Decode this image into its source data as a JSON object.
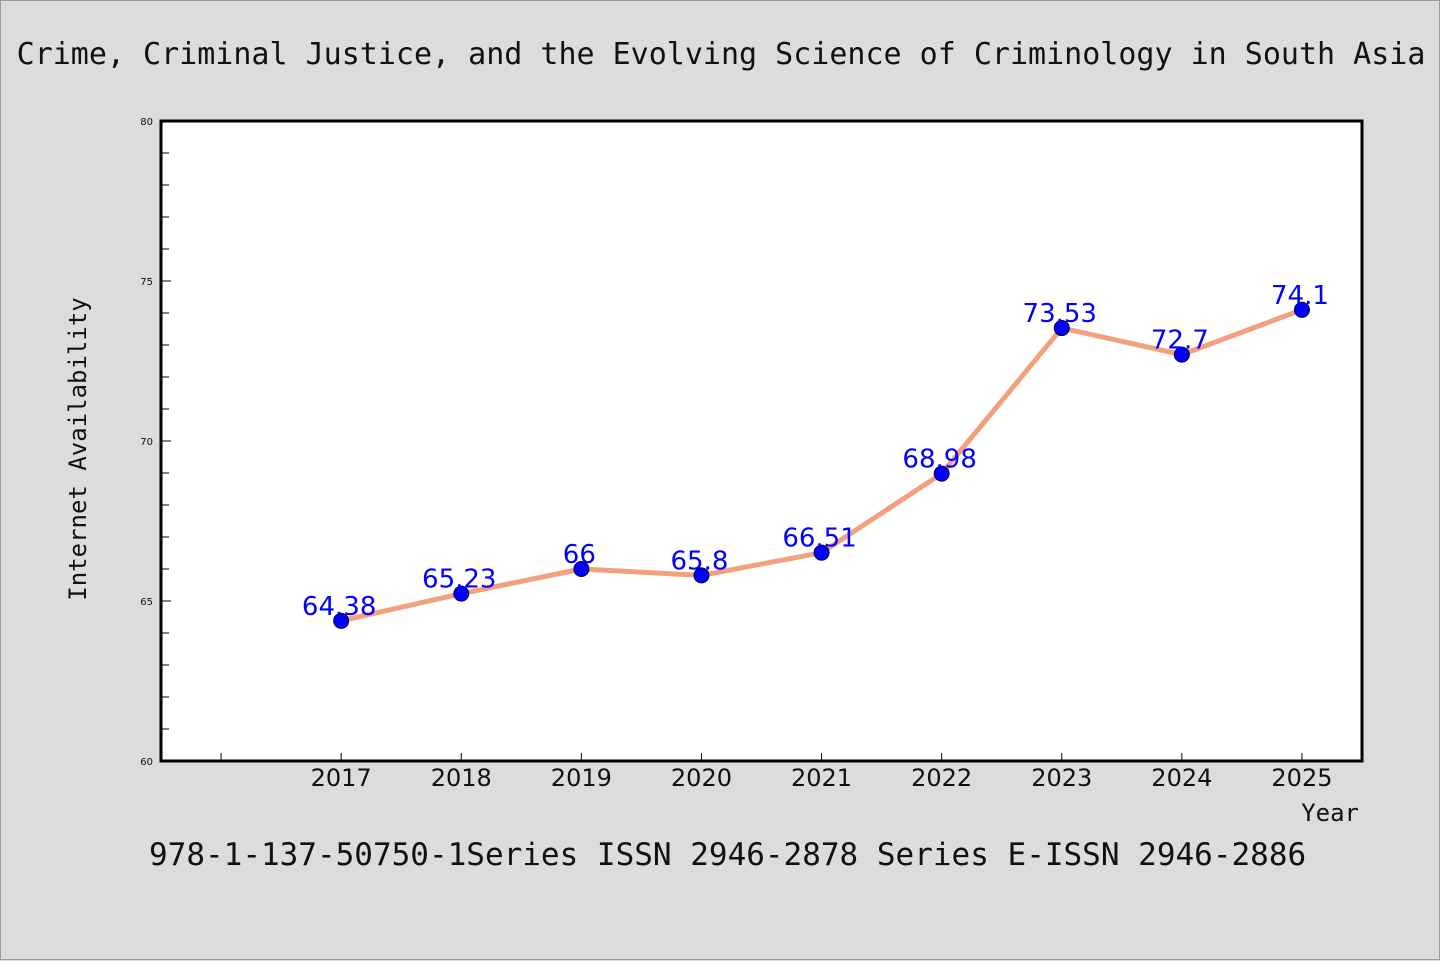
{
  "colors": {
    "background": "#dcdcdc",
    "plot_background": "#ffffff",
    "line": "#f4a07f",
    "marker": "#0000ff",
    "data_label": "#0000ff",
    "axis": "#000000"
  },
  "footer": {
    "text": "978-1-137-50750-1Series ISSN 2946-2878 Series E-ISSN 2946-2886"
  },
  "chart_data": {
    "type": "line",
    "title": "Crime, Criminal Justice, and the Evolving Science of Criminology in South Asia",
    "xlabel": "Year",
    "ylabel": "Internet Availability",
    "categories": [
      "2017",
      "2018",
      "2019",
      "2020",
      "2021",
      "2022",
      "2023",
      "2024",
      "2025"
    ],
    "series": [
      {
        "values": [
          64.38,
          65.23,
          66,
          65.8,
          66.51,
          68.98,
          73.53,
          72.7,
          74.1
        ],
        "data_labels": [
          "64.38",
          "65.23",
          "66",
          "65.8",
          "66.51",
          "68.98",
          "73.53",
          "72.7",
          "74.1"
        ]
      }
    ],
    "ylim": [
      60,
      80
    ],
    "yticks": [
      60,
      65,
      70,
      75,
      80
    ],
    "ytick_labels": [
      "60",
      "65",
      "70",
      "75",
      "80"
    ],
    "y_minor_step": 1,
    "x_slots": 10,
    "grid": false,
    "legend": "none"
  }
}
